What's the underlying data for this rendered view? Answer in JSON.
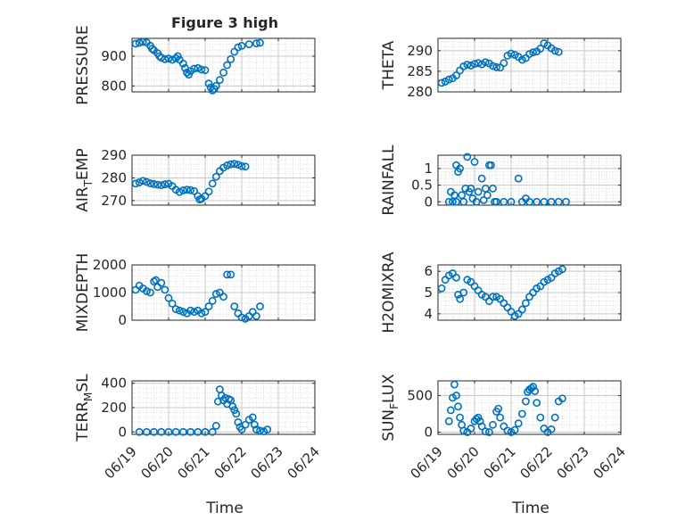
{
  "figure": {
    "title": "Figure 3 high",
    "xlabel": "Time",
    "x_ticks": [
      "06/19",
      "06/20",
      "06/21",
      "06/22",
      "06/23",
      "06/24"
    ],
    "marker_color": "#0072BD",
    "grid": true
  },
  "chart_data": [
    {
      "type": "scatter",
      "id": "pressure",
      "title": "Figure 3 high",
      "ylabel": "PRESSURE",
      "ylim": [
        780,
        960
      ],
      "yticks": [
        800,
        900
      ],
      "xlim": [
        0,
        5
      ],
      "x_unit": "days since 06/19",
      "points": [
        [
          0.1,
          942
        ],
        [
          0.2,
          945
        ],
        [
          0.3,
          948
        ],
        [
          0.4,
          946
        ],
        [
          0.5,
          935
        ],
        [
          0.55,
          925
        ],
        [
          0.6,
          920
        ],
        [
          0.7,
          910
        ],
        [
          0.75,
          900
        ],
        [
          0.8,
          895
        ],
        [
          0.9,
          890
        ],
        [
          1.0,
          892
        ],
        [
          1.1,
          888
        ],
        [
          1.2,
          893
        ],
        [
          1.25,
          900
        ],
        [
          1.3,
          888
        ],
        [
          1.4,
          875
        ],
        [
          1.45,
          860
        ],
        [
          1.5,
          845
        ],
        [
          1.55,
          838
        ],
        [
          1.6,
          850
        ],
        [
          1.7,
          858
        ],
        [
          1.8,
          860
        ],
        [
          1.9,
          855
        ],
        [
          2.0,
          853
        ],
        [
          2.1,
          808
        ],
        [
          2.15,
          795
        ],
        [
          2.2,
          785
        ],
        [
          2.25,
          790
        ],
        [
          2.3,
          800
        ],
        [
          2.4,
          820
        ],
        [
          2.5,
          845
        ],
        [
          2.6,
          870
        ],
        [
          2.7,
          890
        ],
        [
          2.8,
          915
        ],
        [
          2.9,
          930
        ],
        [
          3.0,
          935
        ],
        [
          3.2,
          940
        ],
        [
          3.4,
          943
        ],
        [
          3.5,
          945
        ]
      ]
    },
    {
      "type": "scatter",
      "id": "theta",
      "ylabel": "THETA",
      "ylim": [
        280,
        293
      ],
      "yticks": [
        280,
        285,
        290
      ],
      "xlim": [
        0,
        5
      ],
      "points": [
        [
          0.1,
          282.2
        ],
        [
          0.2,
          282.5
        ],
        [
          0.3,
          283.0
        ],
        [
          0.4,
          283.3
        ],
        [
          0.5,
          284.0
        ],
        [
          0.6,
          285.2
        ],
        [
          0.7,
          286.2
        ],
        [
          0.8,
          286.6
        ],
        [
          0.9,
          286.4
        ],
        [
          1.0,
          286.8
        ],
        [
          1.1,
          287.0
        ],
        [
          1.2,
          286.7
        ],
        [
          1.3,
          287.2
        ],
        [
          1.4,
          286.9
        ],
        [
          1.5,
          286.3
        ],
        [
          1.6,
          286.0
        ],
        [
          1.7,
          285.9
        ],
        [
          1.8,
          287.0
        ],
        [
          1.9,
          288.8
        ],
        [
          2.0,
          289.3
        ],
        [
          2.1,
          289.0
        ],
        [
          2.2,
          288.5
        ],
        [
          2.3,
          287.8
        ],
        [
          2.4,
          288.2
        ],
        [
          2.5,
          289.2
        ],
        [
          2.6,
          289.6
        ],
        [
          2.7,
          289.8
        ],
        [
          2.8,
          290.5
        ],
        [
          2.9,
          291.8
        ],
        [
          3.0,
          291.3
        ],
        [
          3.1,
          290.6
        ],
        [
          3.2,
          290.0
        ],
        [
          3.3,
          289.7
        ]
      ]
    },
    {
      "type": "scatter",
      "id": "air_temp",
      "ylabel": "AIR_TEMP",
      "ylabel_parts": [
        "AIR",
        "T",
        "EMP"
      ],
      "ylim": [
        268,
        290
      ],
      "yticks": [
        270,
        280,
        290
      ],
      "xlim": [
        0,
        5
      ],
      "points": [
        [
          0.1,
          277.5
        ],
        [
          0.2,
          278.0
        ],
        [
          0.3,
          278.7
        ],
        [
          0.4,
          278.2
        ],
        [
          0.5,
          277.6
        ],
        [
          0.6,
          277.3
        ],
        [
          0.7,
          277.0
        ],
        [
          0.8,
          276.8
        ],
        [
          0.9,
          277.2
        ],
        [
          1.0,
          277.4
        ],
        [
          1.1,
          276.4
        ],
        [
          1.2,
          274.8
        ],
        [
          1.3,
          273.8
        ],
        [
          1.4,
          274.5
        ],
        [
          1.5,
          274.8
        ],
        [
          1.6,
          274.6
        ],
        [
          1.7,
          274.2
        ],
        [
          1.8,
          272.0
        ],
        [
          1.85,
          270.5
        ],
        [
          1.9,
          270.8
        ],
        [
          2.0,
          272.0
        ],
        [
          2.1,
          274.0
        ],
        [
          2.2,
          277.5
        ],
        [
          2.3,
          280.5
        ],
        [
          2.4,
          283.0
        ],
        [
          2.5,
          284.5
        ],
        [
          2.6,
          285.5
        ],
        [
          2.7,
          286.0
        ],
        [
          2.8,
          286.2
        ],
        [
          2.9,
          285.8
        ],
        [
          3.0,
          285.2
        ],
        [
          3.1,
          285.0
        ]
      ]
    },
    {
      "type": "scatter",
      "id": "rainfall",
      "ylabel": "RAINFALL",
      "ylim": [
        -0.1,
        1.4
      ],
      "yticks": [
        0,
        0.5,
        1
      ],
      "ytick_labels": [
        "0",
        "0.5",
        "1"
      ],
      "xlim": [
        0,
        5
      ],
      "points": [
        [
          0.3,
          0.0
        ],
        [
          0.35,
          0.3
        ],
        [
          0.4,
          0.0
        ],
        [
          0.45,
          0.2
        ],
        [
          0.5,
          0.0
        ],
        [
          0.5,
          1.1
        ],
        [
          0.55,
          0.9
        ],
        [
          0.6,
          1.0
        ],
        [
          0.65,
          0.2
        ],
        [
          0.7,
          0.0
        ],
        [
          0.75,
          0.4
        ],
        [
          0.8,
          1.35
        ],
        [
          0.85,
          0.3
        ],
        [
          0.9,
          0.4
        ],
        [
          0.95,
          0.1
        ],
        [
          1.0,
          1.2
        ],
        [
          1.05,
          0.0
        ],
        [
          1.1,
          0.3
        ],
        [
          1.2,
          0.7
        ],
        [
          1.25,
          0.05
        ],
        [
          1.3,
          0.4
        ],
        [
          1.35,
          0.2
        ],
        [
          1.4,
          1.1
        ],
        [
          1.45,
          1.1
        ],
        [
          1.5,
          0.4
        ],
        [
          1.55,
          0.0
        ],
        [
          1.6,
          0.0
        ],
        [
          1.8,
          0.0
        ],
        [
          2.0,
          0.0
        ],
        [
          2.2,
          0.7
        ],
        [
          2.3,
          0.0
        ],
        [
          2.4,
          0.1
        ],
        [
          2.5,
          0.0
        ],
        [
          2.7,
          0.0
        ],
        [
          2.9,
          0.0
        ],
        [
          3.1,
          0.0
        ],
        [
          3.3,
          0.0
        ],
        [
          3.5,
          0.0
        ]
      ]
    },
    {
      "type": "scatter",
      "id": "mixdepth",
      "ylabel": "MIXDEPTH",
      "ylim": [
        0,
        2000
      ],
      "yticks": [
        0,
        1000,
        2000
      ],
      "xlim": [
        0,
        5
      ],
      "points": [
        [
          0.1,
          1100
        ],
        [
          0.2,
          1250
        ],
        [
          0.3,
          1150
        ],
        [
          0.4,
          1050
        ],
        [
          0.5,
          1000
        ],
        [
          0.6,
          1400
        ],
        [
          0.65,
          1450
        ],
        [
          0.7,
          1200
        ],
        [
          0.8,
          1350
        ],
        [
          0.9,
          1100
        ],
        [
          1.0,
          800
        ],
        [
          1.1,
          600
        ],
        [
          1.2,
          400
        ],
        [
          1.3,
          350
        ],
        [
          1.4,
          300
        ],
        [
          1.5,
          250
        ],
        [
          1.6,
          350
        ],
        [
          1.7,
          300
        ],
        [
          1.8,
          350
        ],
        [
          1.9,
          250
        ],
        [
          2.0,
          300
        ],
        [
          2.1,
          500
        ],
        [
          2.2,
          700
        ],
        [
          2.3,
          950
        ],
        [
          2.4,
          1000
        ],
        [
          2.5,
          850
        ],
        [
          2.6,
          1650
        ],
        [
          2.7,
          1650
        ],
        [
          2.8,
          500
        ],
        [
          2.9,
          250
        ],
        [
          3.0,
          100
        ],
        [
          3.1,
          50
        ],
        [
          3.2,
          150
        ],
        [
          3.3,
          300
        ],
        [
          3.4,
          150
        ],
        [
          3.5,
          500
        ]
      ]
    },
    {
      "type": "scatter",
      "id": "h2omixra",
      "ylabel": "H2OMIXRA",
      "ylim": [
        3.7,
        6.3
      ],
      "yticks": [
        4,
        5,
        6
      ],
      "xlim": [
        0,
        5
      ],
      "points": [
        [
          0.1,
          5.2
        ],
        [
          0.2,
          5.6
        ],
        [
          0.3,
          5.8
        ],
        [
          0.4,
          5.9
        ],
        [
          0.5,
          5.7
        ],
        [
          0.55,
          4.9
        ],
        [
          0.6,
          4.7
        ],
        [
          0.7,
          5.0
        ],
        [
          0.8,
          5.6
        ],
        [
          0.9,
          5.5
        ],
        [
          1.0,
          5.3
        ],
        [
          1.1,
          5.1
        ],
        [
          1.2,
          4.9
        ],
        [
          1.3,
          4.8
        ],
        [
          1.4,
          4.6
        ],
        [
          1.5,
          4.8
        ],
        [
          1.6,
          4.8
        ],
        [
          1.7,
          4.7
        ],
        [
          1.8,
          4.5
        ],
        [
          1.9,
          4.3
        ],
        [
          2.0,
          4.1
        ],
        [
          2.1,
          3.9
        ],
        [
          2.2,
          4.0
        ],
        [
          2.3,
          4.2
        ],
        [
          2.4,
          4.5
        ],
        [
          2.5,
          4.8
        ],
        [
          2.6,
          5.0
        ],
        [
          2.7,
          5.2
        ],
        [
          2.8,
          5.3
        ],
        [
          2.9,
          5.5
        ],
        [
          3.0,
          5.6
        ],
        [
          3.1,
          5.7
        ],
        [
          3.2,
          5.9
        ],
        [
          3.3,
          6.0
        ],
        [
          3.4,
          6.1
        ]
      ]
    },
    {
      "type": "scatter",
      "id": "terr_msl",
      "ylabel": "TERR_MSL",
      "ylabel_parts": [
        "TERR",
        "M",
        "SL"
      ],
      "ylim": [
        -20,
        420
      ],
      "yticks": [
        0,
        200,
        400
      ],
      "xlim": [
        0,
        5
      ],
      "points": [
        [
          0.2,
          0
        ],
        [
          0.4,
          0
        ],
        [
          0.6,
          0
        ],
        [
          0.8,
          0
        ],
        [
          1.0,
          0
        ],
        [
          1.2,
          0
        ],
        [
          1.4,
          0
        ],
        [
          1.6,
          0
        ],
        [
          1.8,
          0
        ],
        [
          2.0,
          0
        ],
        [
          2.2,
          0
        ],
        [
          2.3,
          50
        ],
        [
          2.35,
          250
        ],
        [
          2.4,
          350
        ],
        [
          2.45,
          300
        ],
        [
          2.5,
          260
        ],
        [
          2.55,
          280
        ],
        [
          2.6,
          230
        ],
        [
          2.65,
          270
        ],
        [
          2.7,
          260
        ],
        [
          2.75,
          210
        ],
        [
          2.8,
          180
        ],
        [
          2.85,
          150
        ],
        [
          2.9,
          80
        ],
        [
          2.95,
          40
        ],
        [
          3.0,
          20
        ],
        [
          3.1,
          60
        ],
        [
          3.2,
          100
        ],
        [
          3.3,
          120
        ],
        [
          3.35,
          60
        ],
        [
          3.4,
          20
        ],
        [
          3.5,
          10
        ],
        [
          3.6,
          5
        ],
        [
          3.7,
          20
        ]
      ]
    },
    {
      "type": "scatter",
      "id": "sun_flux",
      "ylabel": "SUN_FLUX",
      "ylabel_parts": [
        "SUN",
        "F",
        "LUX"
      ],
      "ylim": [
        -30,
        700
      ],
      "yticks": [
        0,
        500
      ],
      "xlim": [
        0,
        5
      ],
      "points": [
        [
          0.3,
          150
        ],
        [
          0.35,
          300
        ],
        [
          0.4,
          470
        ],
        [
          0.45,
          650
        ],
        [
          0.5,
          500
        ],
        [
          0.55,
          350
        ],
        [
          0.6,
          200
        ],
        [
          0.65,
          100
        ],
        [
          0.7,
          20
        ],
        [
          0.8,
          0
        ],
        [
          0.9,
          50
        ],
        [
          1.0,
          150
        ],
        [
          1.05,
          180
        ],
        [
          1.1,
          200
        ],
        [
          1.15,
          150
        ],
        [
          1.2,
          80
        ],
        [
          1.3,
          10
        ],
        [
          1.4,
          0
        ],
        [
          1.5,
          100
        ],
        [
          1.6,
          280
        ],
        [
          1.65,
          320
        ],
        [
          1.7,
          200
        ],
        [
          1.8,
          80
        ],
        [
          1.9,
          20
        ],
        [
          2.0,
          0
        ],
        [
          2.1,
          30
        ],
        [
          2.2,
          120
        ],
        [
          2.3,
          250
        ],
        [
          2.4,
          420
        ],
        [
          2.45,
          550
        ],
        [
          2.5,
          580
        ],
        [
          2.55,
          600
        ],
        [
          2.6,
          620
        ],
        [
          2.65,
          560
        ],
        [
          2.7,
          400
        ],
        [
          2.8,
          200
        ],
        [
          2.9,
          50
        ],
        [
          3.0,
          0
        ],
        [
          3.1,
          40
        ],
        [
          3.2,
          200
        ],
        [
          3.3,
          420
        ],
        [
          3.4,
          460
        ]
      ]
    }
  ]
}
